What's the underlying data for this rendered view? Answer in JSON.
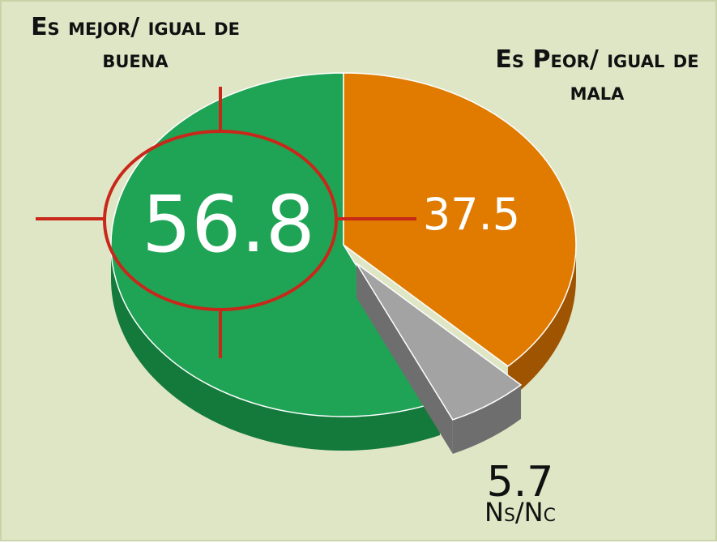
{
  "chart_data": {
    "type": "pie",
    "categories": [
      "Es mejor/ igual de buena",
      "Ns/Nc",
      "Es Peor/ igual de mala"
    ],
    "values": [
      56.8,
      5.7,
      37.5
    ],
    "colors": [
      "#1fa456",
      "#a3a3a3",
      "#e07b00"
    ],
    "side_colors": [
      "#137a3c",
      "#6e6e6e",
      "#9e5400"
    ]
  }
}
